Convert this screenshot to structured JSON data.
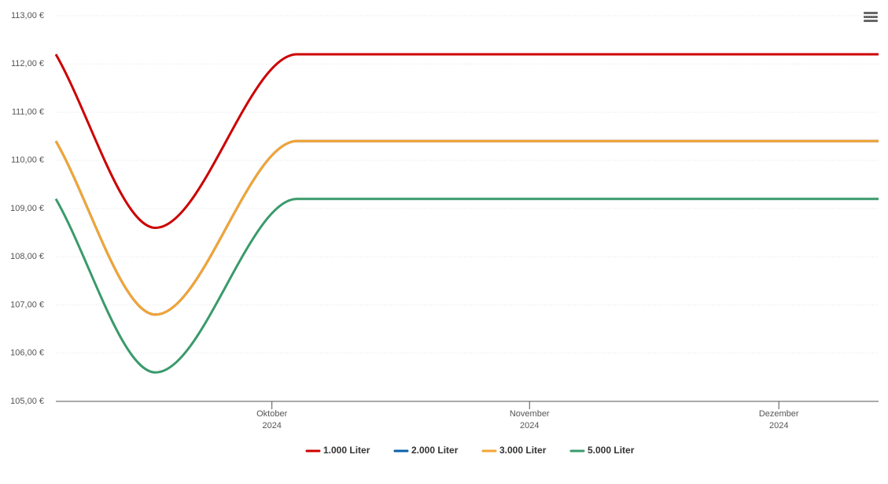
{
  "chart_data": {
    "type": "line",
    "x": [
      249,
      261,
      278,
      348
    ],
    "xlim": [
      249,
      348
    ],
    "xticks": [
      {
        "value": 275,
        "label": "Oktober 2024"
      },
      {
        "value": 306,
        "label": "November 2024"
      },
      {
        "value": 336,
        "label": "Dezember 2024"
      }
    ],
    "ylim": [
      105,
      113
    ],
    "yticks": [
      {
        "value": 105,
        "label": "105,00 €"
      },
      {
        "value": 106,
        "label": "106,00 €"
      },
      {
        "value": 107,
        "label": "107,00 €"
      },
      {
        "value": 108,
        "label": "108,00 €"
      },
      {
        "value": 109,
        "label": "109,00 €"
      },
      {
        "value": 110,
        "label": "110,00 €"
      },
      {
        "value": 111,
        "label": "111,00 €"
      },
      {
        "value": 112,
        "label": "112,00 €"
      },
      {
        "value": 113,
        "label": "113,00 €"
      }
    ],
    "grid": true,
    "legend": "bottom",
    "series": [
      {
        "name": "1.000 Liter",
        "color": "#cc0000",
        "values": [
          112.2,
          108.6,
          112.2,
          112.2
        ]
      },
      {
        "name": "2.000 Liter",
        "color": "#0a5fa8",
        "values": [
          110.4,
          106.8,
          110.4,
          110.4
        ]
      },
      {
        "name": "3.000 Liter",
        "color": "#f4a432",
        "values": [
          110.4,
          106.8,
          110.4,
          110.4
        ]
      },
      {
        "name": "5.000 Liter",
        "color": "#3a9a6c",
        "values": [
          109.2,
          105.6,
          109.2,
          109.2
        ]
      }
    ]
  }
}
